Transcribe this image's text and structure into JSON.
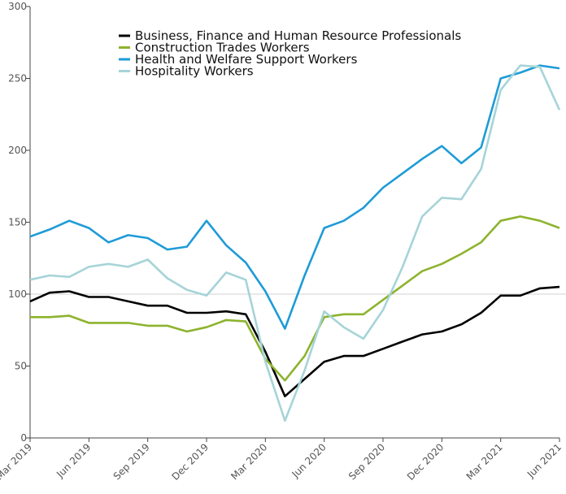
{
  "chart_data": {
    "type": "line",
    "title": "",
    "xlabel": "",
    "ylabel": "",
    "ylim": [
      0,
      300
    ],
    "yticks": [
      0,
      50,
      100,
      150,
      200,
      250,
      300
    ],
    "reference_line": 100,
    "legend_position": "top-center",
    "x": [
      "Mar 2019",
      "Apr 2019",
      "May 2019",
      "Jun 2019",
      "Jul 2019",
      "Aug 2019",
      "Sep 2019",
      "Oct 2019",
      "Nov 2019",
      "Dec 2019",
      "Jan 2020",
      "Feb 2020",
      "Mar 2020",
      "Apr 2020",
      "May 2020",
      "Jun 2020",
      "Jul 2020",
      "Aug 2020",
      "Sep 2020",
      "Oct 2020",
      "Nov 2020",
      "Dec 2020",
      "Jan 2021",
      "Feb 2021",
      "Mar 2021",
      "Apr 2021",
      "May 2021",
      "Jun 2021"
    ],
    "xtick_labels": [
      "Mar 2019",
      "Jun 2019",
      "Sep 2019",
      "Dec 2019",
      "Mar 2020",
      "Jun 2020",
      "Sep 2020",
      "Dec 2020",
      "Mar 2021",
      "Jun 2021"
    ],
    "series": [
      {
        "name": "Business, Finance and Human Resource Professionals",
        "color": "#000000",
        "values": [
          95,
          101,
          102,
          98,
          98,
          95,
          92,
          92,
          87,
          87,
          88,
          86,
          60,
          29,
          41,
          53,
          57,
          57,
          62,
          67,
          72,
          74,
          79,
          87,
          99,
          99,
          104,
          105
        ]
      },
      {
        "name": "Construction Trades Workers",
        "color": "#8db32e",
        "values": [
          84,
          84,
          85,
          80,
          80,
          80,
          78,
          78,
          74,
          77,
          82,
          81,
          55,
          40,
          57,
          84,
          86,
          86,
          96,
          106,
          116,
          121,
          128,
          136,
          151,
          154,
          151,
          146
        ]
      },
      {
        "name": "Health and Welfare Support Workers",
        "color": "#1e9bd7",
        "values": [
          140,
          145,
          151,
          146,
          136,
          141,
          139,
          131,
          133,
          151,
          134,
          122,
          102,
          76,
          113,
          146,
          151,
          160,
          174,
          184,
          194,
          203,
          191,
          202,
          250,
          254,
          259,
          257
        ]
      },
      {
        "name": "Hospitality Workers",
        "color": "#a6d4d8",
        "values": [
          110,
          113,
          112,
          119,
          121,
          119,
          124,
          111,
          103,
          99,
          115,
          110,
          53,
          12,
          47,
          88,
          77,
          69,
          89,
          119,
          154,
          167,
          166,
          187,
          242,
          259,
          258,
          228
        ]
      }
    ]
  }
}
